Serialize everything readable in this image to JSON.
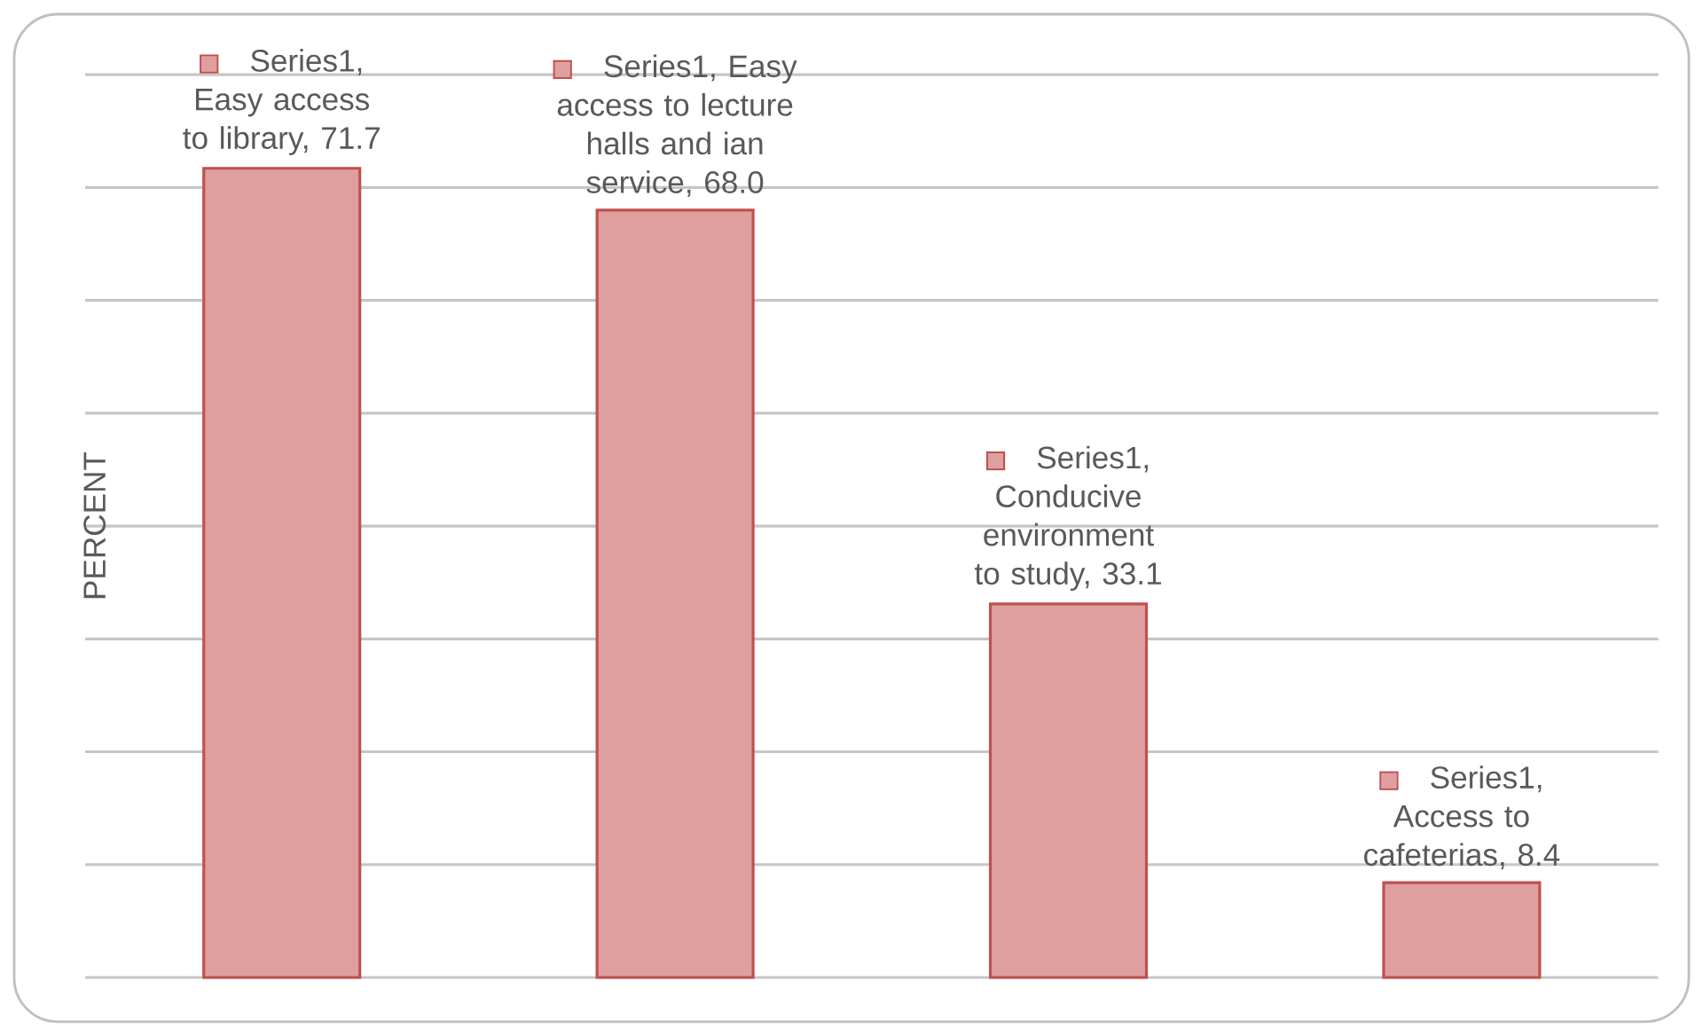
{
  "chart_data": {
    "type": "bar",
    "ylabel": "PERCENT",
    "categories": [
      null,
      null,
      null,
      null
    ],
    "values": [
      71.7,
      68.0,
      33.1,
      8.4
    ],
    "color": "#df9f9f",
    "value_labels": [
      "Series1,  Easy access to library, 71.7",
      "Series1, Easy access to lecture halls and ian service, 68.0",
      "Series1, Conducive environment to study, 33.1",
      "Series1, Access to cafeterias, 8.4"
    ],
    "ylim": [
      0,
      80
    ],
    "yticks": [
      {
        "value": 0,
        "label": null
      },
      {
        "value": 10,
        "label": null
      },
      {
        "value": 20,
        "label": null
      },
      {
        "value": 30,
        "label": null
      },
      {
        "value": 40,
        "label": null
      },
      {
        "value": 50,
        "label": null
      },
      {
        "value": 60,
        "label": null
      },
      {
        "value": 70,
        "label": null
      },
      {
        "value": 80,
        "label": null
      }
    ],
    "grid": "y"
  }
}
